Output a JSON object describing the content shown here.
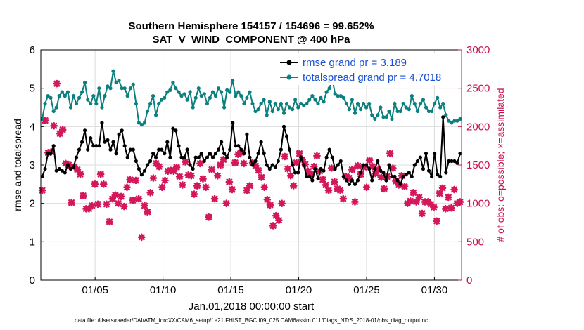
{
  "chart_data": {
    "type": "line",
    "title_line1": "Southern Hemisphere 154157 / 154696 = 99.652%",
    "title_line2": "SAT_V_WIND_COMPONENT @ 400 hPa",
    "xlabel": "Jan.01,2018 00:00:00 start",
    "ylabel_left": "rmse and totalspread",
    "ylabel_right": "# of obs: o=possible; ×=assimilated",
    "xlim": [
      1,
      32
    ],
    "ylim_left": [
      0,
      6
    ],
    "ylim_right": [
      0,
      3000
    ],
    "x_ticks": [
      5,
      10,
      15,
      20,
      25,
      30
    ],
    "x_tick_labels": [
      "01/05",
      "01/10",
      "01/15",
      "01/20",
      "01/25",
      "01/30"
    ],
    "y_ticks_left": [
      "0",
      "1",
      "2",
      "3",
      "4",
      "5",
      "6"
    ],
    "y_ticks_right": [
      "0",
      "500",
      "1000",
      "1500",
      "2000",
      "2500",
      "3000"
    ],
    "grid": true,
    "legend_location": "top-right",
    "series": [
      {
        "name": "rmse grand pr = 3.189",
        "color": "#000000",
        "axis": "left",
        "values": [
          2.7,
          2.9,
          3.3,
          3.3,
          3.5,
          2.85,
          2.9,
          2.85,
          2.8,
          3.0,
          2.9,
          2.95,
          3.2,
          3.4,
          3.6,
          3.9,
          3.4,
          3.7,
          3.5,
          3.5,
          3.5,
          4.1,
          3.6,
          3.65,
          3.4,
          3.6,
          3.3,
          3.8,
          3.9,
          3.5,
          3.2,
          3.4,
          3.4,
          3.1,
          2.9,
          2.75,
          2.85,
          3.0,
          3.1,
          3.3,
          3.2,
          3.4,
          3.4,
          3.3,
          3.6,
          3.2,
          3.95,
          3.9,
          3.5,
          3.2,
          3.2,
          3.4,
          3.0,
          2.9,
          3.2,
          3.2,
          3.3,
          3.1,
          3.2,
          3.3,
          3.2,
          3.3,
          3.4,
          3.6,
          3.3,
          3.2,
          3.4,
          4.1,
          3.5,
          3.5,
          3.4,
          3.3,
          3.8,
          3.2,
          3.0,
          3.1,
          3.3,
          3.6,
          3.3,
          3.0,
          2.9,
          3.0,
          2.95,
          3.1,
          3.4,
          4.0,
          3.75,
          3.4,
          3.0,
          2.8,
          2.8,
          3.2,
          3.0,
          2.7,
          2.7,
          2.6,
          2.9,
          2.65,
          2.9,
          2.85,
          3.2,
          3.4,
          3.2,
          2.9,
          3.0,
          3.1,
          2.7,
          2.6,
          2.5,
          2.6,
          2.5,
          2.6,
          2.8,
          3.0,
          3.0,
          2.9,
          2.6,
          2.9,
          3.1,
          2.85,
          2.8,
          2.6,
          3.0,
          2.7,
          2.7,
          2.6,
          2.5,
          2.7,
          2.75,
          2.8,
          2.7,
          3.0,
          3.1,
          3.2,
          2.9,
          3.3,
          2.85,
          2.7,
          3.3,
          2.75,
          2.7,
          4.25,
          2.8,
          3.1,
          3.1,
          3.1,
          3.05,
          3.3
        ]
      },
      {
        "name": "totalspread grand pr = 4.7018",
        "color": "#0c7f7f",
        "axis": "left",
        "values": [
          4.2,
          4.6,
          4.8,
          4.75,
          4.4,
          4.5,
          4.8,
          4.9,
          4.8,
          4.9,
          4.5,
          4.8,
          4.6,
          4.75,
          4.9,
          5.15,
          4.7,
          4.6,
          4.8,
          4.6,
          5.0,
          4.5,
          4.8,
          5.05,
          5.0,
          5.45,
          5.15,
          5.2,
          5.0,
          5.0,
          4.8,
          5.0,
          5.1,
          4.6,
          4.1,
          4.05,
          4.1,
          4.4,
          4.6,
          4.8,
          4.3,
          4.6,
          4.7,
          4.75,
          4.9,
          4.95,
          5.15,
          5.0,
          4.9,
          4.8,
          4.85,
          4.7,
          4.9,
          4.5,
          4.75,
          5.0,
          4.8,
          4.85,
          4.6,
          4.75,
          4.9,
          4.8,
          5.0,
          4.9,
          4.5,
          4.95,
          4.9,
          5.2,
          4.8,
          4.9,
          4.8,
          4.6,
          4.75,
          4.9,
          4.6,
          4.4,
          4.45,
          4.6,
          4.7,
          4.3,
          4.65,
          4.4,
          4.6,
          4.45,
          4.6,
          4.35,
          4.6,
          4.5,
          4.45,
          4.7,
          4.5,
          4.6,
          4.55,
          4.6,
          4.7,
          4.8,
          4.7,
          4.6,
          4.75,
          4.65,
          4.9,
          5.0,
          5.25,
          4.85,
          4.8,
          4.8,
          4.75,
          4.6,
          4.45,
          4.7,
          4.35,
          4.6,
          4.45,
          4.6,
          4.5,
          4.6,
          4.3,
          4.2,
          4.3,
          4.5,
          4.25,
          4.25,
          4.4,
          4.2,
          4.6,
          4.4,
          4.4,
          4.6,
          4.5,
          4.45,
          4.8,
          4.6,
          4.4,
          4.6,
          4.7,
          4.5,
          4.4,
          4.4,
          4.6,
          4.75,
          4.5,
          4.6,
          4.3,
          4.15,
          4.1,
          4.15,
          4.15,
          4.2
        ]
      }
    ],
    "obs_assimilated": [
      1170,
      2080,
      1660,
      1670,
      2010,
      2560,
      1910,
      1960,
      1520,
      1500,
      1010,
      1480,
      1440,
      1380,
      1100,
      930,
      930,
      970,
      1250,
      990,
      1380,
      1250,
      990,
      760,
      1060,
      1110,
      1000,
      1090,
      960,
      1210,
      1310,
      1040,
      1300,
      1060,
      560,
      970,
      890,
      1140,
      1330,
      1520,
      1480,
      1210,
      1300,
      1420,
      1430,
      1420,
      1470,
      1350,
      1240,
      1540,
      1370,
      1360,
      1120,
      1230,
      1520,
      1320,
      1210,
      820,
      1440,
      1060,
      1360,
      1500,
      1570,
      1000,
      1280,
      1180,
      1530,
      1640,
      1660,
      1520,
      1170,
      1230,
      1530,
      1490,
      1430,
      1340,
      1210,
      1050,
      980,
      710,
      840,
      780,
      1000,
      1610,
      1450,
      1360,
      1230,
      1530,
      1650,
      1570,
      1510,
      1420,
      1380,
      1480,
      1620,
      1420,
      1310,
      1240,
      1170,
      1460,
      1280,
      1190,
      1170,
      1060,
      1350,
      1330,
      1440,
      1020,
      1490,
      1380,
      1470,
      1210,
      1560,
      1480,
      1390,
      1440,
      1340,
      1190,
      1350,
      1650,
      1460,
      1290,
      1240,
      1360,
      1220,
      1000,
      1030,
      1140,
      1020,
      1080,
      870,
      1020,
      1020,
      990,
      950,
      770,
      1130,
      1200,
      930,
      1080,
      940,
      1180,
      1000,
      1020
    ]
  },
  "legend": {
    "rmse_label": "rmse grand pr = 3.189",
    "spread_label": "totalspread grand pr = 4.7018"
  },
  "footnote": "data file: /Users/raeder/DAI/ATM_forcXX/CAM6_setup/f.e21.FHIST_BGC.f09_025.CAM6assim.011/Diags_NTrS_2018-01/obs_diag_output.nc"
}
